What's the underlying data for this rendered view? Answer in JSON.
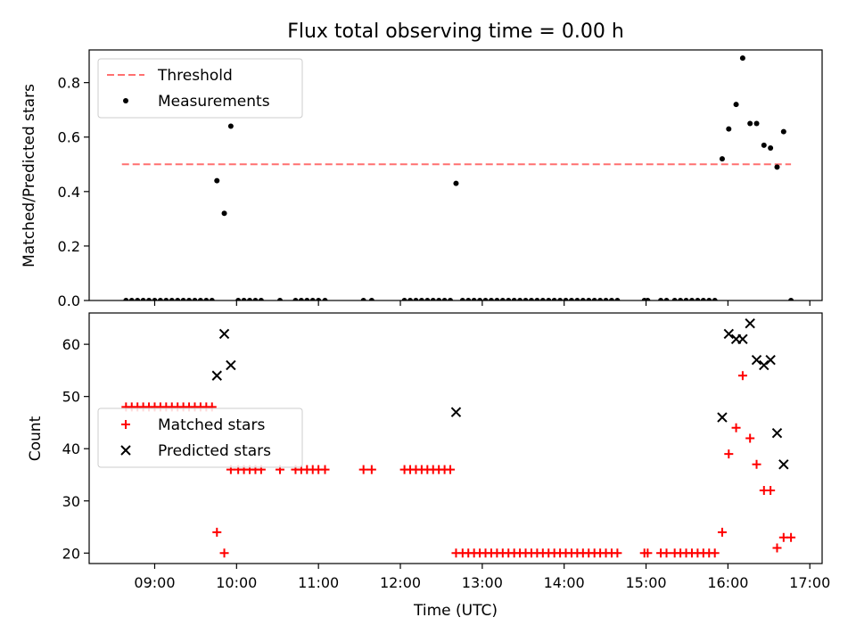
{
  "title": "Flux total observing time = 0.00 h",
  "chart_data": [
    {
      "type": "scatter",
      "ylabel": "Matched/Predicted stars",
      "xlabel": "",
      "x_unit": "hours UTC",
      "xlim": [
        8.2,
        17.15
      ],
      "ylim": [
        0,
        0.92
      ],
      "y_ticks": [
        0.0,
        0.2,
        0.4,
        0.6,
        0.8
      ],
      "y_tick_labels": [
        "0.0",
        "0.2",
        "0.4",
        "0.6",
        "0.8"
      ],
      "x_ticks": [
        9,
        10,
        11,
        12,
        13,
        14,
        15,
        16,
        17
      ],
      "legend_position": "upper-left",
      "threshold": {
        "name": "Threshold",
        "value": 0.5,
        "x_start": 8.6,
        "x_end": 16.77,
        "color": "#ff7070"
      },
      "series": [
        {
          "name": "Measurements",
          "color": "#000000",
          "marker": "dot",
          "points": [
            [
              8.65,
              0
            ],
            [
              8.72,
              0
            ],
            [
              8.79,
              0
            ],
            [
              8.86,
              0
            ],
            [
              8.93,
              0
            ],
            [
              9.0,
              0
            ],
            [
              9.07,
              0
            ],
            [
              9.14,
              0
            ],
            [
              9.21,
              0
            ],
            [
              9.28,
              0
            ],
            [
              9.35,
              0
            ],
            [
              9.42,
              0
            ],
            [
              9.49,
              0
            ],
            [
              9.56,
              0
            ],
            [
              9.63,
              0
            ],
            [
              9.7,
              0
            ],
            [
              9.76,
              0.44
            ],
            [
              9.85,
              0.32
            ],
            [
              9.93,
              0.64
            ],
            [
              10.02,
              0
            ],
            [
              10.09,
              0
            ],
            [
              10.16,
              0
            ],
            [
              10.23,
              0
            ],
            [
              10.3,
              0
            ],
            [
              10.53,
              0
            ],
            [
              10.72,
              0
            ],
            [
              10.79,
              0
            ],
            [
              10.86,
              0
            ],
            [
              10.93,
              0
            ],
            [
              11.0,
              0
            ],
            [
              11.08,
              0
            ],
            [
              11.55,
              0
            ],
            [
              11.65,
              0
            ],
            [
              12.05,
              0
            ],
            [
              12.12,
              0
            ],
            [
              12.19,
              0
            ],
            [
              12.26,
              0
            ],
            [
              12.33,
              0
            ],
            [
              12.4,
              0
            ],
            [
              12.47,
              0
            ],
            [
              12.54,
              0
            ],
            [
              12.61,
              0
            ],
            [
              12.68,
              0.43
            ],
            [
              12.76,
              0
            ],
            [
              12.83,
              0
            ],
            [
              12.9,
              0
            ],
            [
              12.97,
              0
            ],
            [
              13.04,
              0
            ],
            [
              13.11,
              0
            ],
            [
              13.18,
              0
            ],
            [
              13.25,
              0
            ],
            [
              13.32,
              0
            ],
            [
              13.39,
              0
            ],
            [
              13.46,
              0
            ],
            [
              13.53,
              0
            ],
            [
              13.6,
              0
            ],
            [
              13.67,
              0
            ],
            [
              13.74,
              0
            ],
            [
              13.81,
              0
            ],
            [
              13.88,
              0
            ],
            [
              13.95,
              0
            ],
            [
              14.02,
              0
            ],
            [
              14.09,
              0
            ],
            [
              14.16,
              0
            ],
            [
              14.23,
              0
            ],
            [
              14.3,
              0
            ],
            [
              14.37,
              0
            ],
            [
              14.44,
              0
            ],
            [
              14.51,
              0
            ],
            [
              14.58,
              0
            ],
            [
              14.65,
              0
            ],
            [
              14.98,
              0
            ],
            [
              15.02,
              0
            ],
            [
              15.18,
              0
            ],
            [
              15.25,
              0
            ],
            [
              15.35,
              0
            ],
            [
              15.42,
              0
            ],
            [
              15.49,
              0
            ],
            [
              15.56,
              0
            ],
            [
              15.63,
              0
            ],
            [
              15.7,
              0
            ],
            [
              15.77,
              0
            ],
            [
              15.84,
              0
            ],
            [
              15.93,
              0.52
            ],
            [
              16.01,
              0.63
            ],
            [
              16.1,
              0.72
            ],
            [
              16.18,
              0.89
            ],
            [
              16.27,
              0.65
            ],
            [
              16.35,
              0.65
            ],
            [
              16.44,
              0.57
            ],
            [
              16.52,
              0.56
            ],
            [
              16.6,
              0.49
            ],
            [
              16.68,
              0.62
            ],
            [
              16.77,
              0
            ]
          ]
        }
      ]
    },
    {
      "type": "scatter",
      "ylabel": "Count",
      "xlabel": "Time (UTC)",
      "x_unit": "hours UTC",
      "xlim": [
        8.2,
        17.15
      ],
      "ylim": [
        18,
        66
      ],
      "y_ticks": [
        20,
        30,
        40,
        50,
        60
      ],
      "y_tick_labels": [
        "20",
        "30",
        "40",
        "50",
        "60"
      ],
      "x_ticks": [
        9,
        10,
        11,
        12,
        13,
        14,
        15,
        16,
        17
      ],
      "x_tick_labels": [
        "09:00",
        "10:00",
        "11:00",
        "12:00",
        "13:00",
        "14:00",
        "15:00",
        "16:00",
        "17:00"
      ],
      "legend_position": "center-left",
      "series": [
        {
          "name": "Matched stars",
          "color": "#ff0000",
          "marker": "plus",
          "points": [
            [
              8.65,
              48
            ],
            [
              8.72,
              48
            ],
            [
              8.79,
              48
            ],
            [
              8.86,
              48
            ],
            [
              8.93,
              48
            ],
            [
              9.0,
              48
            ],
            [
              9.07,
              48
            ],
            [
              9.14,
              48
            ],
            [
              9.21,
              48
            ],
            [
              9.28,
              48
            ],
            [
              9.35,
              48
            ],
            [
              9.42,
              48
            ],
            [
              9.49,
              48
            ],
            [
              9.56,
              48
            ],
            [
              9.63,
              48
            ],
            [
              9.7,
              48
            ],
            [
              9.76,
              24
            ],
            [
              9.85,
              20
            ],
            [
              9.93,
              36
            ],
            [
              10.02,
              36
            ],
            [
              10.09,
              36
            ],
            [
              10.16,
              36
            ],
            [
              10.23,
              36
            ],
            [
              10.3,
              36
            ],
            [
              10.53,
              36
            ],
            [
              10.72,
              36
            ],
            [
              10.79,
              36
            ],
            [
              10.86,
              36
            ],
            [
              10.93,
              36
            ],
            [
              11.0,
              36
            ],
            [
              11.08,
              36
            ],
            [
              11.55,
              36
            ],
            [
              11.65,
              36
            ],
            [
              12.05,
              36
            ],
            [
              12.12,
              36
            ],
            [
              12.19,
              36
            ],
            [
              12.26,
              36
            ],
            [
              12.33,
              36
            ],
            [
              12.4,
              36
            ],
            [
              12.47,
              36
            ],
            [
              12.54,
              36
            ],
            [
              12.61,
              36
            ],
            [
              12.68,
              20
            ],
            [
              12.76,
              20
            ],
            [
              12.83,
              20
            ],
            [
              12.9,
              20
            ],
            [
              12.97,
              20
            ],
            [
              13.04,
              20
            ],
            [
              13.11,
              20
            ],
            [
              13.18,
              20
            ],
            [
              13.25,
              20
            ],
            [
              13.32,
              20
            ],
            [
              13.39,
              20
            ],
            [
              13.46,
              20
            ],
            [
              13.53,
              20
            ],
            [
              13.6,
              20
            ],
            [
              13.67,
              20
            ],
            [
              13.74,
              20
            ],
            [
              13.81,
              20
            ],
            [
              13.88,
              20
            ],
            [
              13.95,
              20
            ],
            [
              14.02,
              20
            ],
            [
              14.09,
              20
            ],
            [
              14.16,
              20
            ],
            [
              14.23,
              20
            ],
            [
              14.3,
              20
            ],
            [
              14.37,
              20
            ],
            [
              14.44,
              20
            ],
            [
              14.51,
              20
            ],
            [
              14.58,
              20
            ],
            [
              14.65,
              20
            ],
            [
              14.98,
              20
            ],
            [
              15.02,
              20
            ],
            [
              15.18,
              20
            ],
            [
              15.25,
              20
            ],
            [
              15.35,
              20
            ],
            [
              15.42,
              20
            ],
            [
              15.49,
              20
            ],
            [
              15.56,
              20
            ],
            [
              15.63,
              20
            ],
            [
              15.7,
              20
            ],
            [
              15.77,
              20
            ],
            [
              15.84,
              20
            ],
            [
              15.93,
              24
            ],
            [
              16.01,
              39
            ],
            [
              16.1,
              44
            ],
            [
              16.18,
              54
            ],
            [
              16.27,
              42
            ],
            [
              16.35,
              37
            ],
            [
              16.44,
              32
            ],
            [
              16.52,
              32
            ],
            [
              16.6,
              21
            ],
            [
              16.68,
              23
            ],
            [
              16.77,
              23
            ]
          ]
        },
        {
          "name": "Predicted stars",
          "color": "#000000",
          "marker": "x",
          "points": [
            [
              9.76,
              54
            ],
            [
              9.85,
              62
            ],
            [
              9.93,
              56
            ],
            [
              12.68,
              47
            ],
            [
              15.93,
              46
            ],
            [
              16.01,
              62
            ],
            [
              16.1,
              61
            ],
            [
              16.18,
              61
            ],
            [
              16.27,
              64
            ],
            [
              16.35,
              57
            ],
            [
              16.44,
              56
            ],
            [
              16.52,
              57
            ],
            [
              16.6,
              43
            ],
            [
              16.68,
              37
            ]
          ]
        }
      ]
    }
  ]
}
